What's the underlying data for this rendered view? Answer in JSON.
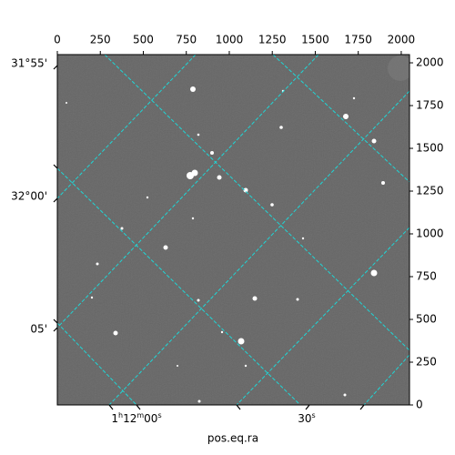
{
  "chart_data": {
    "type": "image",
    "x_label": "pos.eq.ra",
    "xlim": [
      0,
      2048
    ],
    "xticks": [
      0,
      250,
      500,
      750,
      1000,
      1250,
      1500,
      1750,
      2000
    ],
    "ylim": [
      0,
      2048
    ],
    "yticks": [
      0,
      250,
      500,
      750,
      1000,
      1250,
      1500,
      1750,
      2000
    ],
    "ra_ticks": [
      "1h12m00s",
      "30s"
    ],
    "dec_ticks": [
      "31°55'",
      "32°00'",
      "05'"
    ]
  }
}
